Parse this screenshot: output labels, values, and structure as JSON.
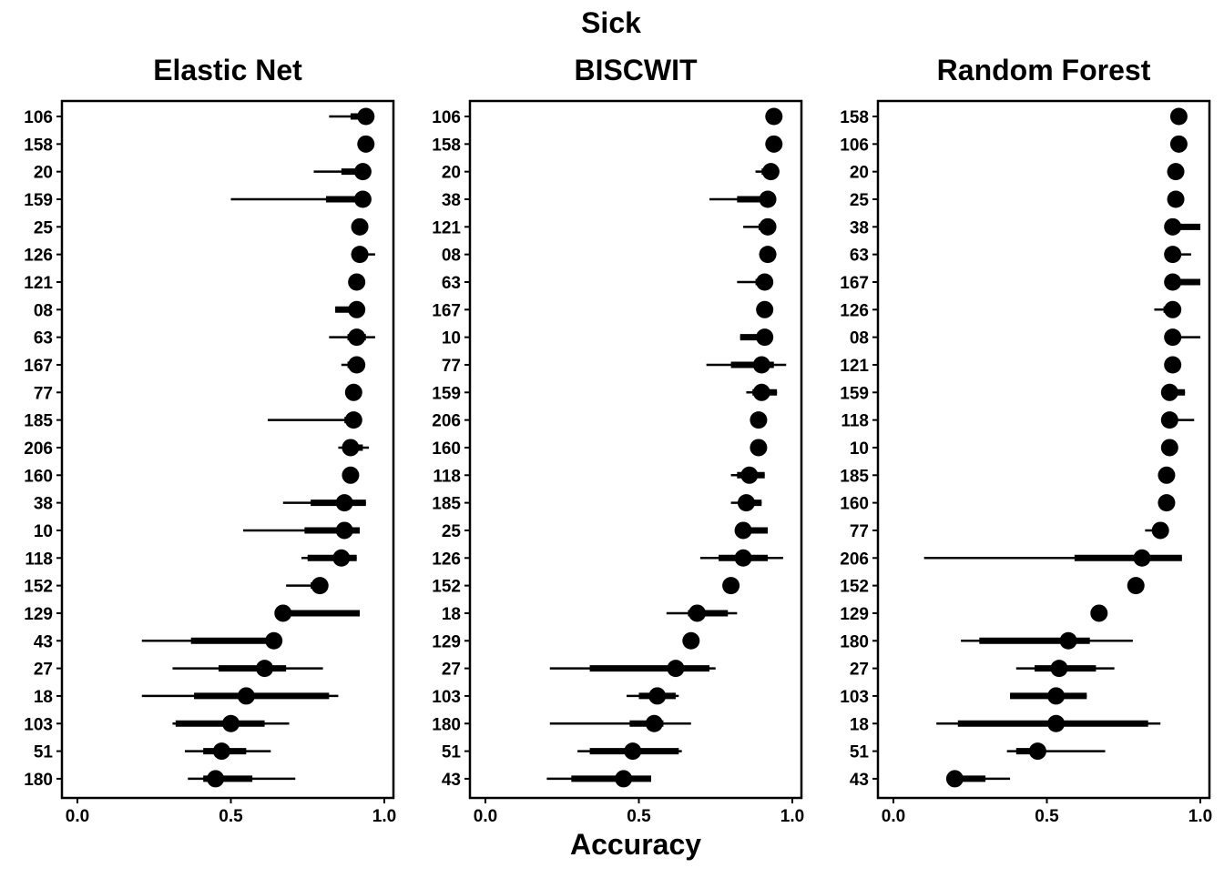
{
  "figure": {
    "title": "Sick",
    "xlabel": "Accuracy"
  },
  "chart_data": [
    {
      "type": "scatter",
      "title": "Elastic Net",
      "xlabel": "Accuracy",
      "ylabel": "",
      "xlim": [
        0,
        1
      ],
      "xticks": [
        "0.0",
        "0.5",
        "1.0"
      ],
      "grid": false,
      "categories": [
        "106",
        "158",
        "20",
        "159",
        "25",
        "126",
        "121",
        "08",
        "63",
        "167",
        "77",
        "185",
        "206",
        "160",
        "38",
        "10",
        "118",
        "152",
        "129",
        "43",
        "27",
        "18",
        "103",
        "51",
        "180"
      ],
      "point": [
        0.94,
        0.94,
        0.93,
        0.93,
        0.92,
        0.92,
        0.91,
        0.91,
        0.91,
        0.91,
        0.9,
        0.9,
        0.89,
        0.89,
        0.87,
        0.87,
        0.86,
        0.79,
        0.67,
        0.64,
        0.61,
        0.55,
        0.5,
        0.47,
        0.45
      ],
      "outer_interval": [
        [
          0.82,
          0.95
        ],
        [
          0.94,
          0.94
        ],
        [
          0.77,
          0.94
        ],
        [
          0.5,
          0.93
        ],
        [
          0.92,
          0.92
        ],
        [
          0.92,
          0.97
        ],
        [
          0.91,
          0.91
        ],
        [
          0.84,
          0.92
        ],
        [
          0.82,
          0.97
        ],
        [
          0.86,
          0.92
        ],
        [
          0.9,
          0.9
        ],
        [
          0.62,
          0.91
        ],
        [
          0.85,
          0.95
        ],
        [
          0.89,
          0.89
        ],
        [
          0.67,
          0.94
        ],
        [
          0.54,
          0.92
        ],
        [
          0.73,
          0.91
        ],
        [
          0.68,
          0.79
        ],
        [
          0.67,
          0.92
        ],
        [
          0.21,
          0.65
        ],
        [
          0.31,
          0.8
        ],
        [
          0.21,
          0.85
        ],
        [
          0.31,
          0.69
        ],
        [
          0.35,
          0.63
        ],
        [
          0.36,
          0.71
        ]
      ],
      "inner_interval": [
        [
          0.89,
          0.95
        ],
        [
          0.94,
          0.94
        ],
        [
          0.86,
          0.94
        ],
        [
          0.81,
          0.93
        ],
        [
          0.92,
          0.92
        ],
        [
          0.92,
          0.94
        ],
        [
          0.91,
          0.91
        ],
        [
          0.84,
          0.92
        ],
        [
          0.88,
          0.94
        ],
        [
          0.88,
          0.92
        ],
        [
          0.9,
          0.9
        ],
        [
          0.87,
          0.91
        ],
        [
          0.87,
          0.93
        ],
        [
          0.89,
          0.89
        ],
        [
          0.76,
          0.94
        ],
        [
          0.74,
          0.92
        ],
        [
          0.75,
          0.91
        ],
        [
          0.76,
          0.79
        ],
        [
          0.67,
          0.92
        ],
        [
          0.37,
          0.65
        ],
        [
          0.46,
          0.68
        ],
        [
          0.38,
          0.82
        ],
        [
          0.32,
          0.61
        ],
        [
          0.41,
          0.55
        ],
        [
          0.41,
          0.57
        ]
      ]
    },
    {
      "type": "scatter",
      "title": "BISCWIT",
      "xlabel": "Accuracy",
      "ylabel": "",
      "xlim": [
        0,
        1
      ],
      "xticks": [
        "0.0",
        "0.5",
        "1.0"
      ],
      "grid": false,
      "categories": [
        "106",
        "158",
        "20",
        "38",
        "121",
        "08",
        "63",
        "167",
        "10",
        "77",
        "159",
        "206",
        "160",
        "118",
        "185",
        "25",
        "126",
        "152",
        "18",
        "129",
        "27",
        "103",
        "180",
        "51",
        "43"
      ],
      "point": [
        0.94,
        0.94,
        0.93,
        0.92,
        0.92,
        0.92,
        0.91,
        0.91,
        0.91,
        0.9,
        0.9,
        0.89,
        0.89,
        0.86,
        0.85,
        0.84,
        0.84,
        0.8,
        0.69,
        0.67,
        0.62,
        0.56,
        0.55,
        0.48,
        0.45
      ],
      "outer_interval": [
        [
          0.94,
          0.94
        ],
        [
          0.94,
          0.94
        ],
        [
          0.88,
          0.93
        ],
        [
          0.73,
          0.92
        ],
        [
          0.84,
          0.92
        ],
        [
          0.92,
          0.92
        ],
        [
          0.82,
          0.91
        ],
        [
          0.91,
          0.91
        ],
        [
          0.83,
          0.93
        ],
        [
          0.72,
          0.98
        ],
        [
          0.85,
          0.95
        ],
        [
          0.89,
          0.89
        ],
        [
          0.89,
          0.89
        ],
        [
          0.8,
          0.91
        ],
        [
          0.8,
          0.9
        ],
        [
          0.83,
          0.92
        ],
        [
          0.7,
          0.97
        ],
        [
          0.8,
          0.8
        ],
        [
          0.59,
          0.82
        ],
        [
          0.67,
          0.67
        ],
        [
          0.21,
          0.75
        ],
        [
          0.46,
          0.63
        ],
        [
          0.21,
          0.67
        ],
        [
          0.3,
          0.64
        ],
        [
          0.2,
          0.54
        ]
      ],
      "inner_interval": [
        [
          0.94,
          0.94
        ],
        [
          0.94,
          0.94
        ],
        [
          0.9,
          0.93
        ],
        [
          0.82,
          0.92
        ],
        [
          0.89,
          0.92
        ],
        [
          0.92,
          0.92
        ],
        [
          0.88,
          0.91
        ],
        [
          0.91,
          0.91
        ],
        [
          0.83,
          0.92
        ],
        [
          0.8,
          0.94
        ],
        [
          0.87,
          0.95
        ],
        [
          0.89,
          0.89
        ],
        [
          0.89,
          0.89
        ],
        [
          0.82,
          0.91
        ],
        [
          0.83,
          0.9
        ],
        [
          0.83,
          0.92
        ],
        [
          0.76,
          0.92
        ],
        [
          0.8,
          0.8
        ],
        [
          0.66,
          0.79
        ],
        [
          0.67,
          0.67
        ],
        [
          0.34,
          0.73
        ],
        [
          0.5,
          0.62
        ],
        [
          0.47,
          0.58
        ],
        [
          0.34,
          0.63
        ],
        [
          0.28,
          0.54
        ]
      ]
    },
    {
      "type": "scatter",
      "title": "Random Forest",
      "xlabel": "Accuracy",
      "ylabel": "",
      "xlim": [
        0,
        1
      ],
      "xticks": [
        "0.0",
        "0.5",
        "1.0"
      ],
      "grid": false,
      "categories": [
        "158",
        "106",
        "20",
        "25",
        "38",
        "63",
        "167",
        "126",
        "08",
        "121",
        "159",
        "118",
        "10",
        "185",
        "160",
        "77",
        "206",
        "152",
        "129",
        "180",
        "27",
        "103",
        "18",
        "51",
        "43"
      ],
      "point": [
        0.93,
        0.93,
        0.92,
        0.92,
        0.91,
        0.91,
        0.91,
        0.91,
        0.91,
        0.91,
        0.9,
        0.9,
        0.9,
        0.89,
        0.89,
        0.87,
        0.81,
        0.79,
        0.67,
        0.57,
        0.54,
        0.53,
        0.53,
        0.47,
        0.2
      ],
      "outer_interval": [
        [
          0.93,
          0.93
        ],
        [
          0.93,
          0.93
        ],
        [
          0.92,
          0.92
        ],
        [
          0.92,
          0.92
        ],
        [
          0.91,
          1.0
        ],
        [
          0.91,
          0.97
        ],
        [
          0.91,
          1.0
        ],
        [
          0.85,
          0.91
        ],
        [
          0.91,
          1.0
        ],
        [
          0.91,
          0.91
        ],
        [
          0.9,
          0.95
        ],
        [
          0.9,
          0.98
        ],
        [
          0.9,
          0.9
        ],
        [
          0.89,
          0.89
        ],
        [
          0.89,
          0.89
        ],
        [
          0.82,
          0.88
        ],
        [
          0.1,
          0.94
        ],
        [
          0.79,
          0.79
        ],
        [
          0.67,
          0.67
        ],
        [
          0.22,
          0.78
        ],
        [
          0.4,
          0.72
        ],
        [
          0.38,
          0.63
        ],
        [
          0.14,
          0.87
        ],
        [
          0.37,
          0.69
        ],
        [
          0.2,
          0.38
        ]
      ],
      "inner_interval": [
        [
          0.93,
          0.93
        ],
        [
          0.93,
          0.93
        ],
        [
          0.92,
          0.92
        ],
        [
          0.92,
          0.92
        ],
        [
          0.91,
          1.0
        ],
        [
          0.91,
          0.91
        ],
        [
          0.91,
          1.0
        ],
        [
          0.88,
          0.91
        ],
        [
          0.91,
          0.91
        ],
        [
          0.91,
          0.91
        ],
        [
          0.9,
          0.95
        ],
        [
          0.9,
          0.9
        ],
        [
          0.9,
          0.9
        ],
        [
          0.89,
          0.89
        ],
        [
          0.89,
          0.89
        ],
        [
          0.87,
          0.87
        ],
        [
          0.59,
          0.94
        ],
        [
          0.79,
          0.79
        ],
        [
          0.67,
          0.67
        ],
        [
          0.28,
          0.64
        ],
        [
          0.46,
          0.66
        ],
        [
          0.38,
          0.63
        ],
        [
          0.21,
          0.83
        ],
        [
          0.4,
          0.47
        ],
        [
          0.2,
          0.3
        ]
      ]
    }
  ]
}
